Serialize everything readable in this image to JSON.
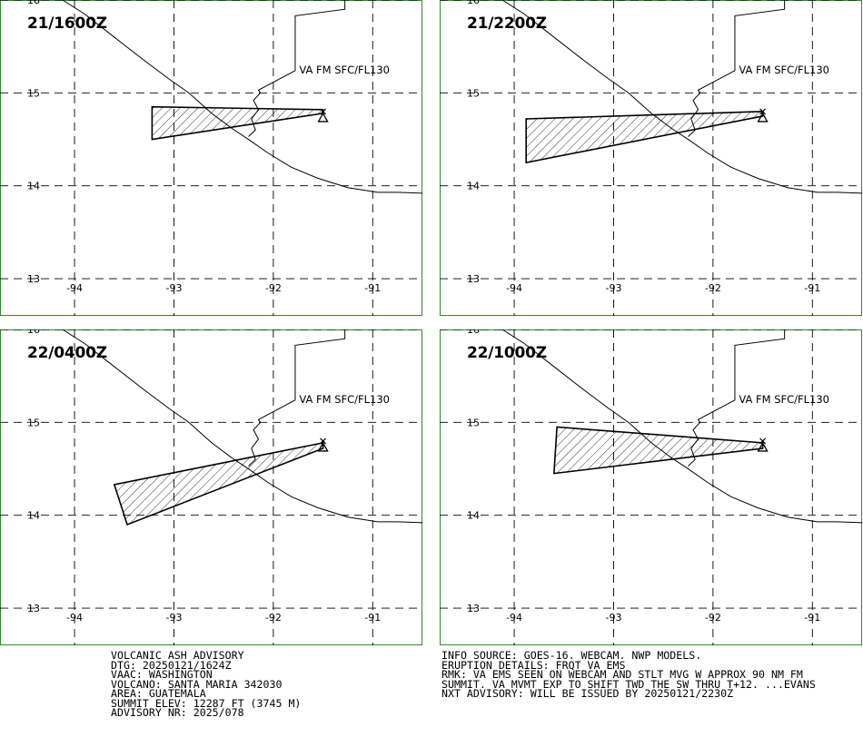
{
  "panels": [
    {
      "time": "21/1600Z",
      "level": "VA FM SFC/FL130",
      "ash_polygon": [
        [
          -91.5,
          14.82
        ],
        [
          -93.22,
          14.85
        ],
        [
          -93.22,
          14.5
        ],
        [
          -91.5,
          14.78
        ]
      ]
    },
    {
      "time": "21/2200Z",
      "level": "VA FM SFC/FL130",
      "ash_polygon": [
        [
          -91.5,
          14.8
        ],
        [
          -93.88,
          14.72
        ],
        [
          -93.88,
          14.25
        ],
        [
          -91.5,
          14.75
        ]
      ]
    },
    {
      "time": "22/0400Z",
      "level": "VA FM SFC/FL130",
      "ash_polygon": [
        [
          -91.5,
          14.78
        ],
        [
          -93.6,
          14.33
        ],
        [
          -93.47,
          13.9
        ],
        [
          -91.5,
          14.72
        ]
      ]
    },
    {
      "time": "22/1000Z",
      "level": "VA FM SFC/FL130",
      "ash_polygon": [
        [
          -91.5,
          14.78
        ],
        [
          -93.57,
          14.95
        ],
        [
          -93.6,
          14.45
        ],
        [
          -91.5,
          14.72
        ]
      ]
    }
  ],
  "map": {
    "lon_ticks": [
      "-94",
      "-93",
      "-92",
      "-91"
    ],
    "lat_ticks": [
      "16",
      "15",
      "14",
      "13"
    ],
    "lon_range": [
      -94.75,
      -90.5
    ],
    "lat_range": [
      16.0,
      12.6
    ],
    "volcano": {
      "lon": -91.5,
      "lat": 14.76
    }
  },
  "advisory_left": [
    "VOLCANIC ASH ADVISORY",
    "DTG: 20250121/1624Z",
    "VAAC: WASHINGTON",
    "VOLCANO: SANTA MARIA 342030",
    "AREA: GUATEMALA",
    "SUMMIT ELEV: 12287 FT (3745 M)",
    "ADVISORY NR: 2025/078"
  ],
  "advisory_right": [
    "INFO SOURCE: GOES-16. WEBCAM. NWP MODELS.",
    "ERUPTION DETAILS: FRQT VA EMS",
    "RMK: VA EMS SEEN ON WEBCAM AND STLT MVG W APPROX 90 NM FM",
    "SUMMIT. VA MVMT EXP TO SHIFT TWD THE SW THRU T+12. ...EVANS",
    "NXT ADVISORY: WILL BE ISSUED BY 20250121/2230Z"
  ]
}
